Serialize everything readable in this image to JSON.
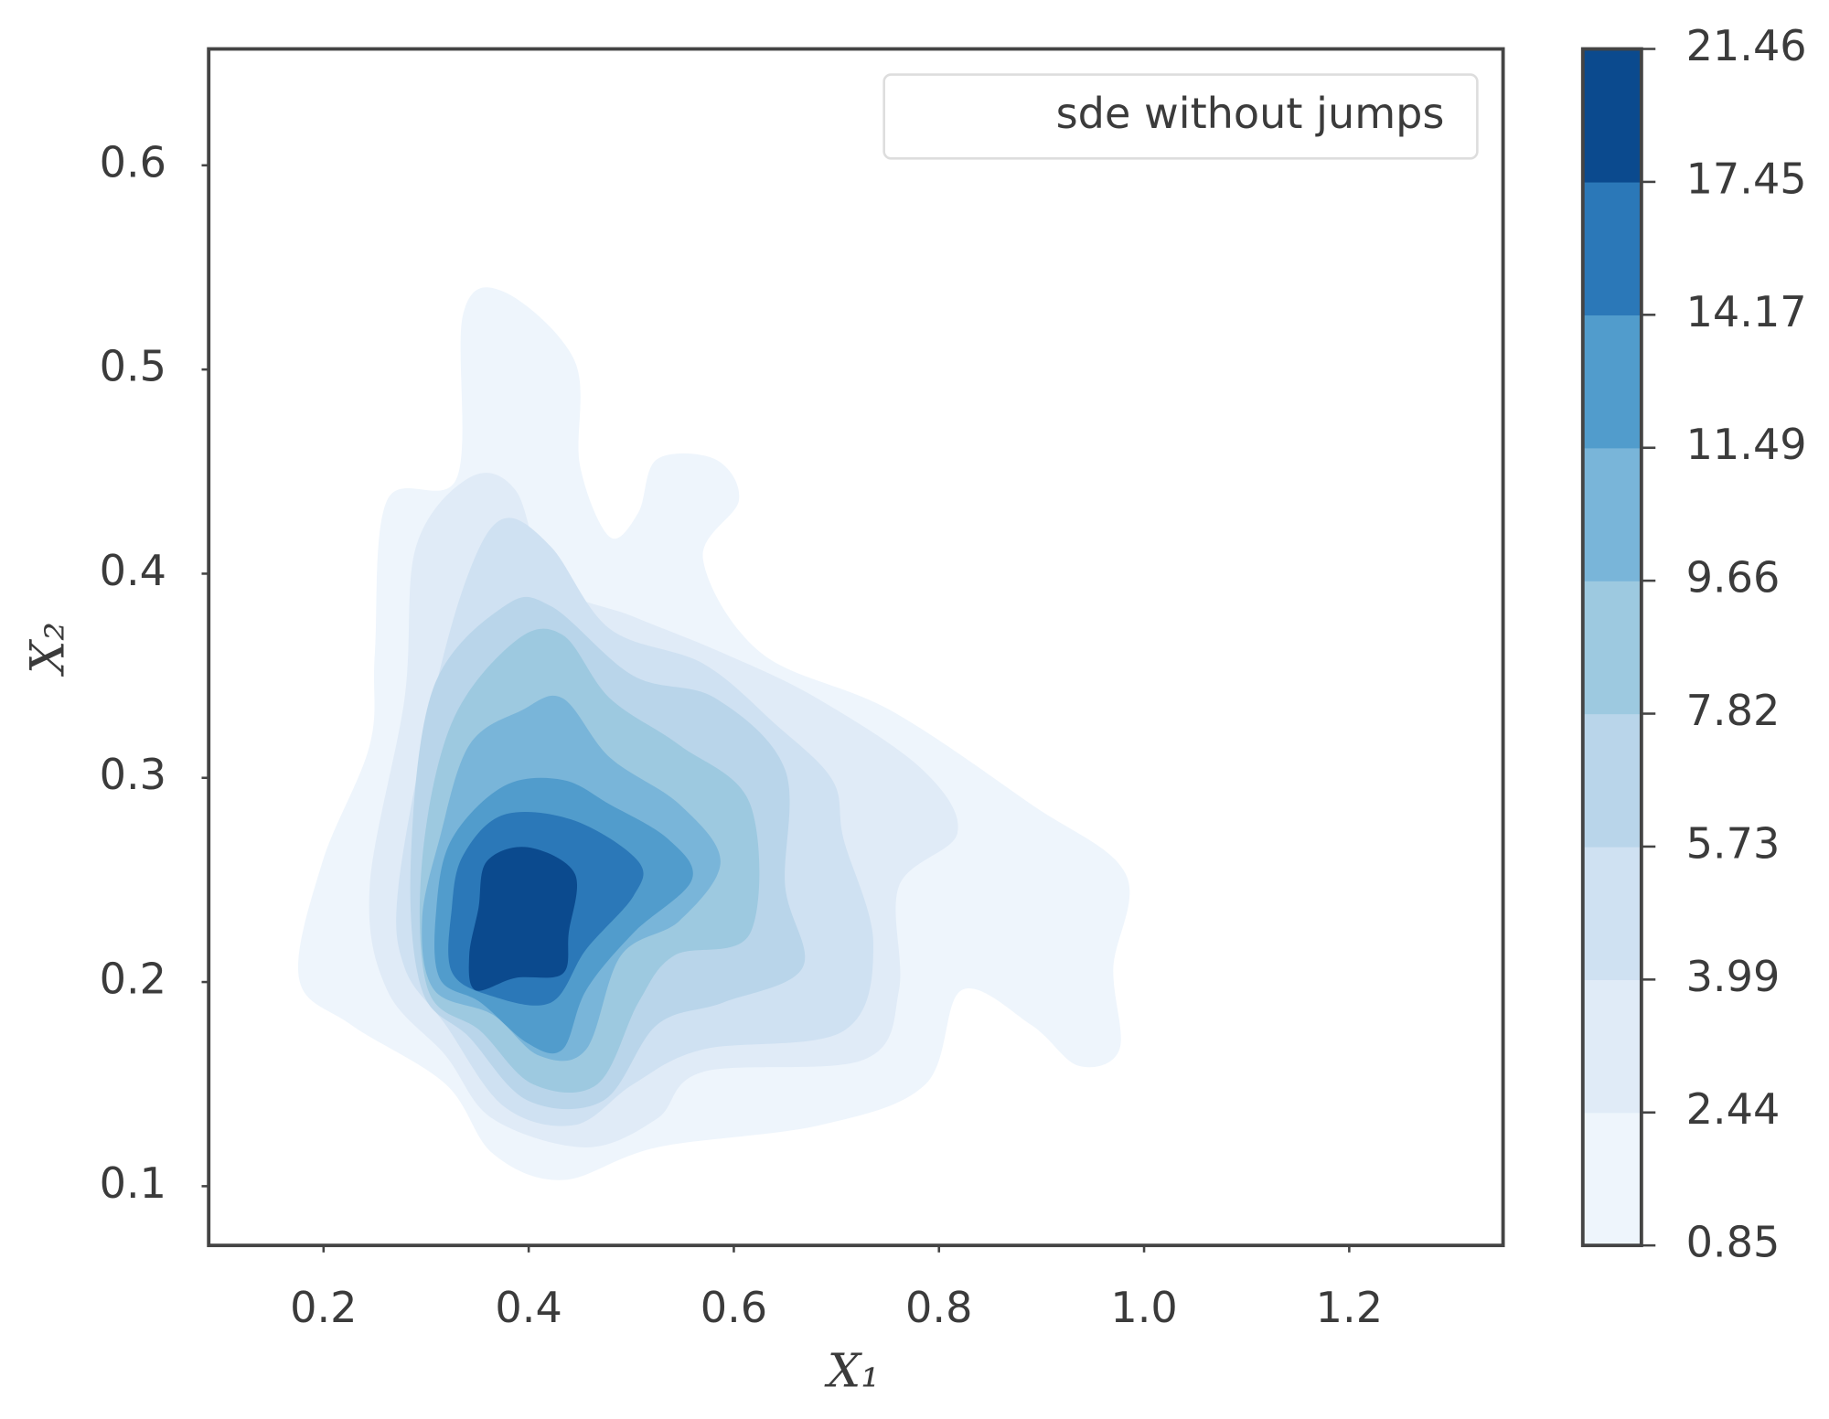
{
  "chart_data": {
    "type": "contourf",
    "xlabel": "X₁",
    "ylabel": "X₂",
    "legend_labels": [
      "sde without jumps"
    ],
    "legend_loc": "upper right",
    "xlim": [
      0.088,
      1.35
    ],
    "xticks": [
      0.2,
      0.4,
      0.6,
      0.8,
      {
        "value": 1,
        "label": "1.0"
      },
      1.2
    ],
    "ylim": [
      0.071,
      0.657
    ],
    "yticks": [
      0.1,
      0.2,
      0.3,
      0.4,
      0.5,
      0.6
    ],
    "levels": [
      0.85,
      2.44,
      3.99,
      5.73,
      7.82,
      9.66,
      11.49,
      14.17,
      17.45,
      21.46
    ],
    "colors": [
      "#eef5fc",
      "#e0ebf7",
      "#cfe1f2",
      "#b9d5ea",
      "#9dc9e0",
      "#79b5d9",
      "#519ccc",
      "#2b78b8",
      "#0b4a8e"
    ],
    "contours": [
      {
        "x": [
          0.176,
          0.199,
          0.245,
          0.25,
          0.262,
          0.33,
          0.336,
          0.376,
          0.445,
          0.45,
          0.479,
          0.507,
          0.525,
          0.582,
          0.605,
          0.57,
          0.627,
          0.753,
          0.89,
          0.982,
          0.97,
          0.976,
          0.936,
          0.89,
          0.822,
          0.787,
          0.685,
          0.525,
          0.433,
          0.365,
          0.319,
          0.227
        ],
        "y": [
          0.202,
          0.259,
          0.316,
          0.361,
          0.436,
          0.447,
          0.527,
          0.538,
          0.504,
          0.453,
          0.418,
          0.43,
          0.456,
          0.456,
          0.436,
          0.407,
          0.361,
          0.333,
          0.287,
          0.253,
          0.207,
          0.167,
          0.159,
          0.179,
          0.196,
          0.15,
          0.13,
          0.119,
          0.103,
          0.116,
          0.15,
          0.179
        ]
      },
      {
        "x": [
          0.245,
          0.279,
          0.29,
          0.342,
          0.387,
          0.422,
          0.502,
          0.59,
          0.681,
          0.784,
          0.818,
          0.761,
          0.761,
          0.727,
          0.57,
          0.525,
          0.456,
          0.365,
          0.319,
          0.262
        ],
        "y": [
          0.247,
          0.339,
          0.413,
          0.447,
          0.441,
          0.396,
          0.379,
          0.361,
          0.339,
          0.304,
          0.273,
          0.247,
          0.196,
          0.162,
          0.156,
          0.133,
          0.119,
          0.133,
          0.164,
          0.196
        ]
      },
      {
        "x": [
          0.273,
          0.307,
          0.342,
          0.376,
          0.422,
          0.479,
          0.57,
          0.639,
          0.696,
          0.707,
          0.736,
          0.707,
          0.57,
          0.502,
          0.445,
          0.376,
          0.319,
          0.279
        ],
        "y": [
          0.247,
          0.339,
          0.401,
          0.427,
          0.413,
          0.373,
          0.356,
          0.327,
          0.299,
          0.27,
          0.219,
          0.176,
          0.167,
          0.15,
          0.13,
          0.139,
          0.179,
          0.207
        ]
      },
      {
        "x": [
          0.285,
          0.307,
          0.376,
          0.422,
          0.502,
          0.582,
          0.65,
          0.65,
          0.667,
          0.59,
          0.525,
          0.473,
          0.399,
          0.342,
          0.296
        ],
        "y": [
          0.259,
          0.344,
          0.384,
          0.384,
          0.35,
          0.339,
          0.304,
          0.247,
          0.207,
          0.19,
          0.179,
          0.142,
          0.142,
          0.173,
          0.196
        ]
      },
      {
        "x": [
          0.296,
          0.325,
          0.387,
          0.433,
          0.479,
          0.547,
          0.616,
          0.616,
          0.542,
          0.507,
          0.467,
          0.404,
          0.353,
          0.302
        ],
        "y": [
          0.259,
          0.327,
          0.367,
          0.37,
          0.339,
          0.316,
          0.287,
          0.224,
          0.213,
          0.19,
          0.15,
          0.15,
          0.176,
          0.196
        ]
      },
      {
        "x": [
          0.313,
          0.342,
          0.393,
          0.433,
          0.479,
          0.547,
          0.587,
          0.547,
          0.49,
          0.456,
          0.41,
          0.365,
          0.308,
          0.296
        ],
        "y": [
          0.27,
          0.316,
          0.333,
          0.339,
          0.31,
          0.287,
          0.259,
          0.23,
          0.213,
          0.167,
          0.164,
          0.184,
          0.196,
          0.23
        ]
      },
      {
        "x": [
          0.325,
          0.376,
          0.433,
          0.479,
          0.536,
          0.559,
          0.502,
          0.456,
          0.433,
          0.399,
          0.353,
          0.313,
          0.31
        ],
        "y": [
          0.27,
          0.296,
          0.299,
          0.287,
          0.27,
          0.25,
          0.224,
          0.196,
          0.167,
          0.17,
          0.19,
          0.202,
          0.236
        ]
      },
      {
        "x": [
          0.336,
          0.376,
          0.445,
          0.507,
          0.502,
          0.456,
          0.422,
          0.365,
          0.325,
          0.325
        ],
        "y": [
          0.262,
          0.282,
          0.279,
          0.259,
          0.242,
          0.216,
          0.19,
          0.193,
          0.205,
          0.236
        ]
      },
      {
        "x": [
          0.359,
          0.399,
          0.445,
          0.439,
          0.433,
          0.387,
          0.348,
          0.342,
          0.351
        ],
        "y": [
          0.259,
          0.266,
          0.253,
          0.224,
          0.204,
          0.202,
          0.196,
          0.213,
          0.236
        ]
      }
    ]
  }
}
